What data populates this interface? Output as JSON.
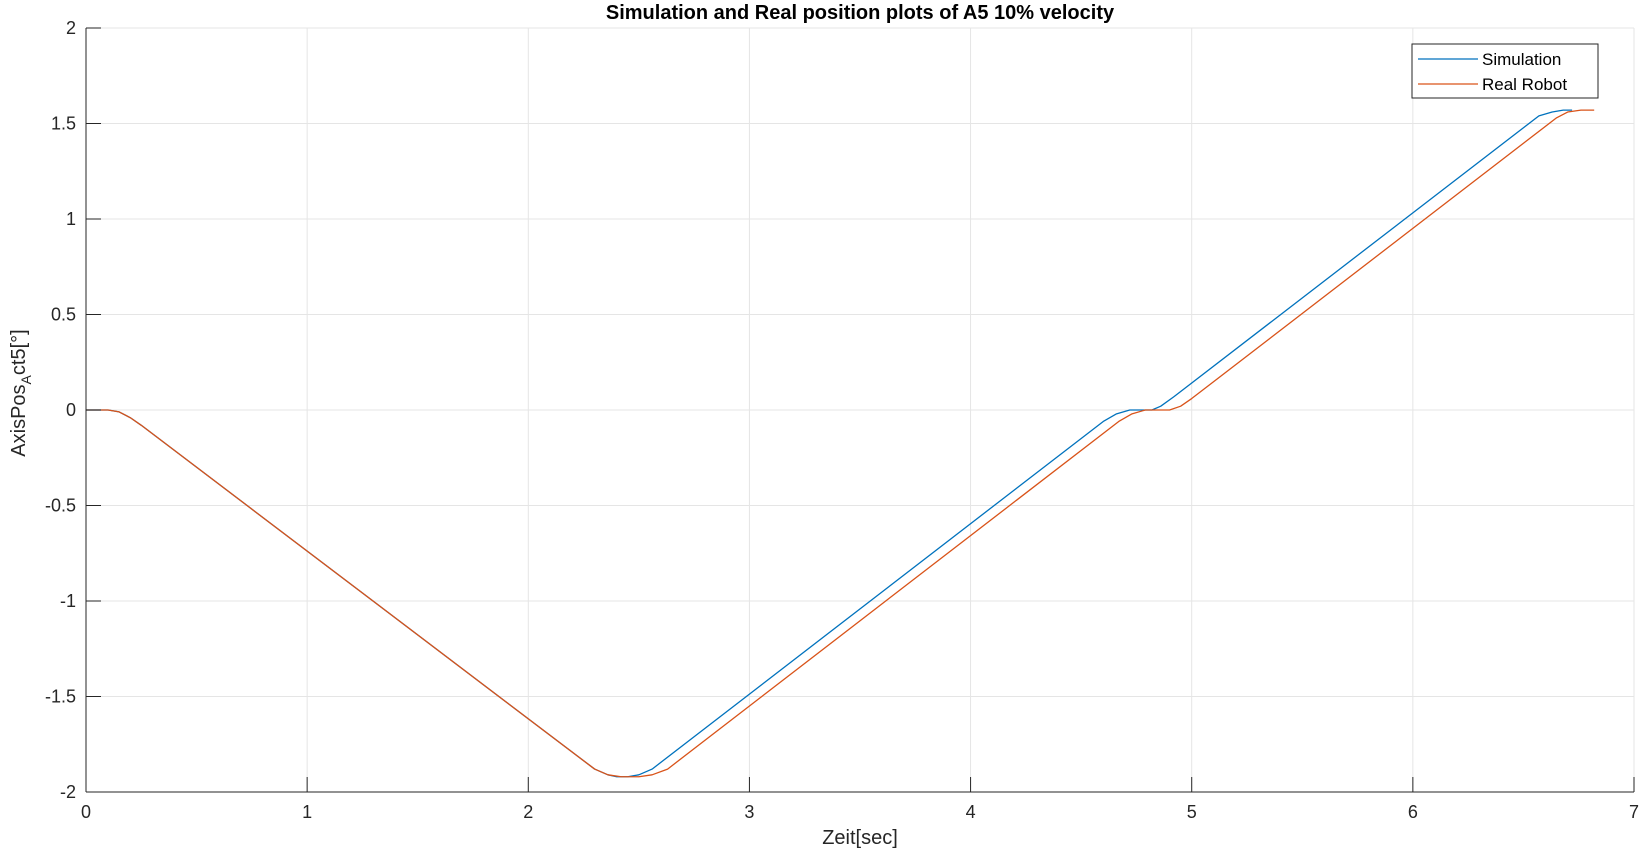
{
  "chart_data": {
    "type": "line",
    "title": "Simulation and Real position plots of A5 10% velocity",
    "xlabel": "Zeit[sec]",
    "ylabel": {
      "base": "AxisPos",
      "subscript": "A",
      "rest": "ct5[°]"
    },
    "xlim": [
      0,
      7
    ],
    "ylim": [
      -2,
      2
    ],
    "xticks": [
      0,
      1,
      2,
      3,
      4,
      5,
      6,
      7
    ],
    "xtick_labels": [
      "0",
      "1",
      "2",
      "3",
      "4",
      "5",
      "6",
      "7"
    ],
    "yticks": [
      2,
      1.5,
      1,
      0.5,
      0,
      -0.5,
      -1,
      -1.5,
      -2
    ],
    "ytick_labels": [
      "2",
      "1.5",
      "1",
      "0.5",
      "0",
      "-0.5",
      "-1",
      "-1.5",
      "-2"
    ],
    "grid": true,
    "legend_position": "top-right",
    "colors": {
      "Simulation": "#0072BD",
      "Real Robot": "#D95319"
    },
    "series": [
      {
        "name": "Simulation",
        "x": [
          0,
          0.1,
          0.15,
          0.2,
          0.25,
          2.3,
          2.36,
          2.4,
          2.45,
          2.5,
          2.56,
          4.6,
          4.66,
          4.72,
          4.78,
          4.82,
          4.86,
          4.92,
          6.57,
          6.63,
          6.68,
          6.72
        ],
        "y": [
          0,
          0,
          -0.01,
          -0.04,
          -0.08,
          -1.88,
          -1.91,
          -1.92,
          -1.92,
          -1.91,
          -1.88,
          -0.06,
          -0.02,
          0,
          0,
          0,
          0.02,
          0.07,
          1.54,
          1.56,
          1.57,
          1.57
        ]
      },
      {
        "name": "Real Robot",
        "x": [
          0,
          0.1,
          0.15,
          0.2,
          0.25,
          2.3,
          2.36,
          2.42,
          2.5,
          2.56,
          2.63,
          4.67,
          4.73,
          4.79,
          4.85,
          4.9,
          4.95,
          5.0,
          6.65,
          6.7,
          6.76,
          6.82
        ],
        "y": [
          0,
          0,
          -0.01,
          -0.04,
          -0.08,
          -1.88,
          -1.91,
          -1.92,
          -1.92,
          -1.91,
          -1.88,
          -0.06,
          -0.02,
          0,
          0,
          0,
          0.02,
          0.06,
          1.53,
          1.56,
          1.57,
          1.57
        ]
      }
    ]
  }
}
